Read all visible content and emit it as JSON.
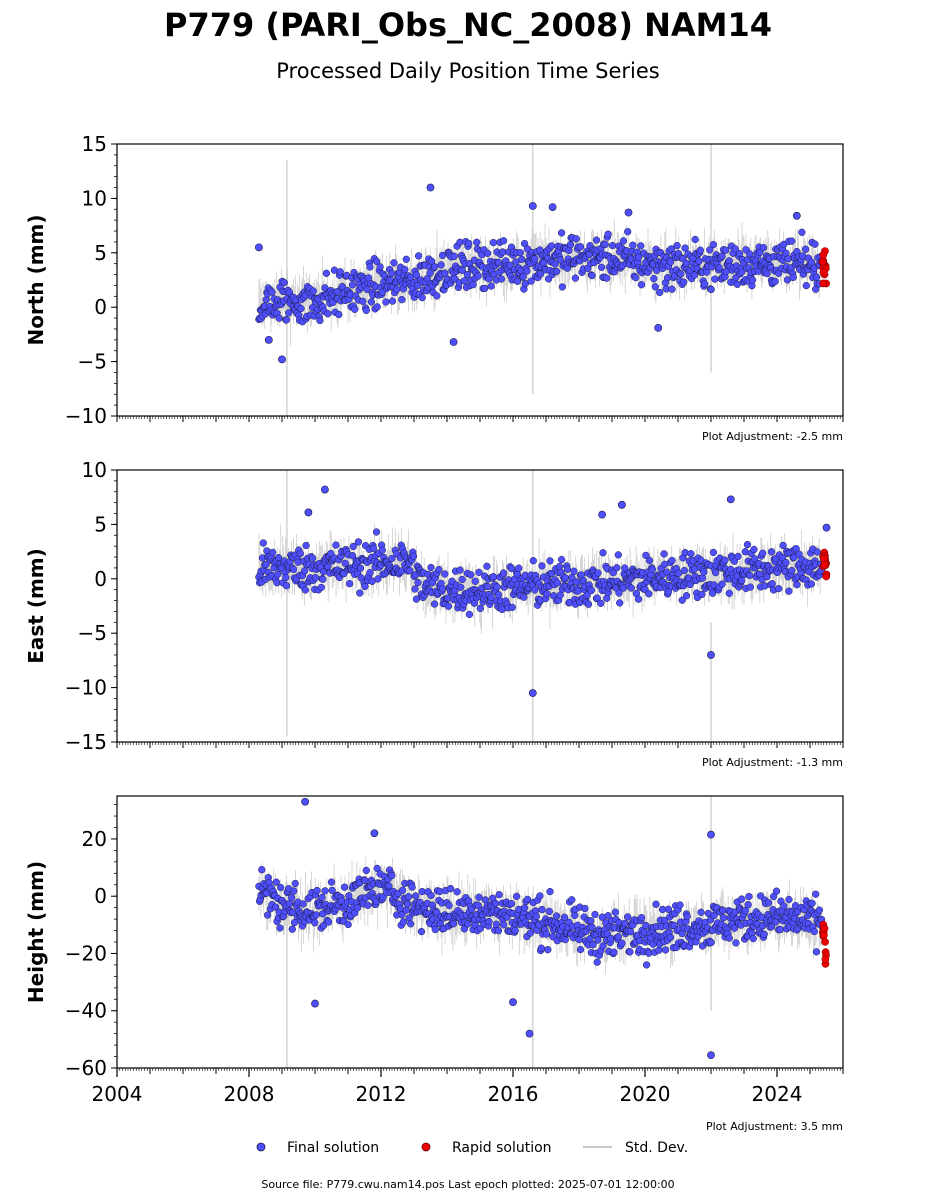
{
  "figure": {
    "title": "P779 (PARI_Obs_NC_2008) NAM14",
    "subtitle": "Processed Daily Position Time Series",
    "footer": "Source file: P779.cwu.nam14.pos  Last epoch plotted: 2025-07-01 12:00:00"
  },
  "legend": {
    "position": "bottom-center",
    "final_label": "Final solution",
    "rapid_label": "Rapid solution",
    "std_label": "Std. Dev."
  },
  "colors": {
    "final": "#4f4fff",
    "final_edge": "#1a1a40",
    "rapid": "#ee0000",
    "std": "#b8b8b8"
  },
  "chart_data": [
    {
      "type": "scatter",
      "panel": "north",
      "ylabel": "North (mm)",
      "ylim": [
        -10,
        15
      ],
      "yticks": [
        -10,
        -5,
        0,
        5,
        10,
        15
      ],
      "ytick_labels": [
        "−10",
        "−5",
        "0",
        "5",
        "10",
        "15"
      ],
      "xlim": [
        2004,
        2026
      ],
      "adjustment_label": "Plot Adjustment: -2.5 mm",
      "series": [
        {
          "name": "Final solution",
          "x": [
            2008.3,
            2009.0,
            2010.0,
            2011.0,
            2012.0,
            2013.0,
            2014.0,
            2015.0,
            2016.0,
            2017.0,
            2018.0,
            2019.0,
            2020.0,
            2021.0,
            2022.0,
            2023.0,
            2024.0,
            2025.0
          ],
          "y": [
            0.0,
            0.5,
            0.5,
            1.5,
            2.0,
            2.5,
            3.5,
            3.8,
            4.0,
            4.3,
            4.6,
            4.5,
            4.0,
            3.8,
            3.8,
            4.0,
            4.0,
            3.8
          ]
        },
        {
          "name": "Rapid solution",
          "x": [
            2025.4,
            2025.5
          ],
          "y": [
            4.2,
            3.0
          ]
        }
      ],
      "outliers": [
        [
          2008.3,
          5.5
        ],
        [
          2009.0,
          -4.8
        ],
        [
          2013.5,
          11.0
        ],
        [
          2016.6,
          9.3
        ],
        [
          2017.2,
          9.2
        ],
        [
          2019.5,
          8.7
        ],
        [
          2024.6,
          8.4
        ],
        [
          2008.6,
          -3.0
        ],
        [
          2014.2,
          -3.2
        ],
        [
          2020.4,
          -1.9
        ]
      ],
      "spikes": [
        [
          2009.15,
          -10,
          13.5
        ],
        [
          2016.6,
          -8,
          16
        ],
        [
          2022.0,
          -6,
          15
        ]
      ]
    },
    {
      "type": "scatter",
      "panel": "east",
      "ylabel": "East (mm)",
      "ylim": [
        -15,
        10
      ],
      "yticks": [
        -15,
        -10,
        -5,
        0,
        5,
        10
      ],
      "ytick_labels": [
        "−15",
        "−10",
        "−5",
        "0",
        "5",
        "10"
      ],
      "xlim": [
        2004,
        2026
      ],
      "adjustment_label": "Plot Adjustment: -1.3 mm",
      "series": [
        {
          "name": "Final solution",
          "x": [
            2008.3,
            2009.0,
            2010.0,
            2011.0,
            2012.0,
            2012.9,
            2013.2,
            2014.0,
            2015.0,
            2016.0,
            2017.0,
            2018.0,
            2019.0,
            2020.0,
            2021.0,
            2022.0,
            2023.0,
            2024.0,
            2025.0
          ],
          "y": [
            1.0,
            1.0,
            1.0,
            1.2,
            1.5,
            1.5,
            -0.5,
            -1.0,
            -1.0,
            -0.8,
            -0.5,
            -0.5,
            -0.3,
            0.0,
            0.3,
            0.5,
            0.8,
            1.0,
            1.2
          ]
        },
        {
          "name": "Rapid solution",
          "x": [
            2025.4,
            2025.5
          ],
          "y": [
            1.5,
            1.0
          ]
        }
      ],
      "outliers": [
        [
          2010.3,
          8.2
        ],
        [
          2009.8,
          6.1
        ],
        [
          2019.3,
          6.8
        ],
        [
          2022.6,
          7.3
        ],
        [
          2018.7,
          5.9
        ],
        [
          2016.6,
          -10.5
        ],
        [
          2022.0,
          -7.0
        ],
        [
          2025.5,
          4.7
        ]
      ],
      "spikes": [
        [
          2009.15,
          -14.5,
          10
        ],
        [
          2016.6,
          -15,
          10
        ],
        [
          2022.0,
          -15,
          -4
        ]
      ]
    },
    {
      "type": "scatter",
      "panel": "height",
      "ylabel": "Height (mm)",
      "ylim": [
        -60,
        35
      ],
      "yticks": [
        -60,
        -40,
        -20,
        0,
        20
      ],
      "ytick_labels": [
        "−60",
        "−40",
        "−20",
        "0",
        "20"
      ],
      "xlim": [
        2004,
        2026
      ],
      "xticks": [
        2004,
        2008,
        2012,
        2016,
        2020,
        2024
      ],
      "xtick_labels": [
        "2004",
        "2008",
        "2012",
        "2016",
        "2020",
        "2024"
      ],
      "adjustment_label": "Plot Adjustment: 3.5 mm",
      "series": [
        {
          "name": "Final solution",
          "x": [
            2008.3,
            2009.0,
            2010.0,
            2011.0,
            2012.0,
            2013.0,
            2014.0,
            2015.0,
            2016.0,
            2017.0,
            2018.0,
            2019.0,
            2020.0,
            2021.0,
            2022.0,
            2023.0,
            2024.0,
            2025.0
          ],
          "y": [
            2.0,
            -3.0,
            -5.0,
            -2.0,
            3.0,
            -3.0,
            -6.0,
            -5.0,
            -7.0,
            -9.0,
            -12.0,
            -14.0,
            -12.0,
            -11.0,
            -10.0,
            -8.0,
            -7.0,
            -9.0
          ]
        },
        {
          "name": "Rapid solution",
          "x": [
            2025.4,
            2025.5
          ],
          "y": [
            -12.0,
            -22.0
          ]
        }
      ],
      "outliers": [
        [
          2009.7,
          33.0
        ],
        [
          2022.0,
          21.5
        ],
        [
          2016.5,
          -48.0
        ],
        [
          2022.0,
          -55.5
        ],
        [
          2010.0,
          -37.5
        ],
        [
          2016.0,
          -37.0
        ],
        [
          2011.8,
          22.0
        ]
      ],
      "spikes": [
        [
          2009.15,
          -60,
          5
        ],
        [
          2016.6,
          -60,
          0
        ],
        [
          2022.0,
          -40,
          35
        ]
      ]
    }
  ]
}
